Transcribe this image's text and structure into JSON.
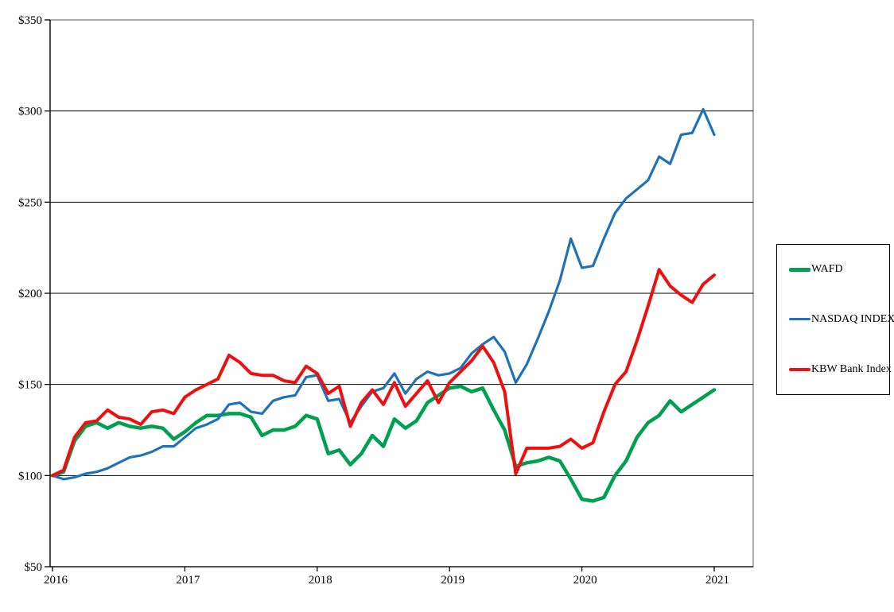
{
  "chart_data": {
    "type": "line",
    "title": "",
    "xlabel": "",
    "ylabel": "",
    "x_unit": "months since start (monthly points, Sep 2016 - Sep 2021 fiscal years)",
    "x_tick_labels": [
      "2016",
      "2017",
      "2018",
      "2019",
      "2020",
      "2021"
    ],
    "x_tick_months": [
      0,
      12,
      24,
      36,
      48,
      60
    ],
    "y_tick_labels": [
      "$50",
      "$100",
      "$150",
      "$200",
      "$250",
      "$300",
      "$350"
    ],
    "y_tick_values": [
      50,
      100,
      150,
      200,
      250,
      300,
      350
    ],
    "ylim": [
      50,
      350
    ],
    "xlim_months": [
      0,
      60
    ],
    "grid": "horizontal-only",
    "legend_position": "right-outside-boxed",
    "axis_color": "#000000",
    "border_color": "#808080",
    "gridline_color": "#000000",
    "background_color": "#ffffff",
    "series": [
      {
        "name": "WAFD",
        "color": "#00A050",
        "line_width": 4.5,
        "values": [
          100,
          102,
          119,
          127,
          129,
          126,
          129,
          127,
          126,
          127,
          126,
          120,
          124,
          129,
          133,
          133,
          134,
          134,
          132,
          122,
          125,
          125,
          127,
          133,
          131,
          112,
          114,
          106,
          112,
          122,
          116,
          131,
          126,
          130,
          140,
          144,
          148,
          149,
          146,
          148,
          136,
          125,
          105,
          107,
          108,
          110,
          108,
          98,
          87,
          86,
          88,
          100,
          108,
          121,
          129,
          133,
          141,
          135,
          139,
          143,
          147
        ]
      },
      {
        "name": "NASDAQ INDEX",
        "color": "#1F72B8",
        "line_width": 3.2,
        "values": [
          100,
          98,
          99,
          101,
          102,
          104,
          107,
          110,
          111,
          113,
          116,
          116,
          121,
          126,
          128,
          131,
          139,
          140,
          135,
          134,
          141,
          143,
          144,
          154,
          155,
          141,
          142,
          129,
          138,
          146,
          148,
          156,
          145,
          153,
          157,
          155,
          156,
          159,
          167,
          172,
          176,
          168,
          151,
          161,
          175,
          190,
          207,
          230,
          214,
          215,
          230,
          244,
          252,
          257,
          262,
          275,
          271,
          287,
          288,
          301,
          287
        ]
      },
      {
        "name": "KBW Bank Index",
        "color": "#EE1010",
        "line_width": 4,
        "values": [
          100,
          103,
          121,
          129,
          130,
          136,
          132,
          131,
          128,
          135,
          136,
          134,
          143,
          147,
          150,
          153,
          166,
          162,
          156,
          155,
          155,
          152,
          151,
          160,
          156,
          145,
          149,
          127,
          140,
          147,
          139,
          151,
          138,
          145,
          152,
          140,
          151,
          157,
          163,
          171,
          162,
          146,
          101,
          115,
          115,
          115,
          116,
          120,
          115,
          118,
          135,
          150,
          157,
          174,
          193,
          213,
          204,
          199,
          195,
          205,
          210
        ]
      }
    ]
  },
  "legend": {
    "entries": [
      {
        "label": "WAFD",
        "color": "#00A050",
        "thickness": 5
      },
      {
        "label": "NASDAQ INDEX",
        "color": "#1F72B8",
        "thickness": 3
      },
      {
        "label": "KBW Bank Index",
        "color": "#EE1010",
        "thickness": 4
      }
    ]
  }
}
